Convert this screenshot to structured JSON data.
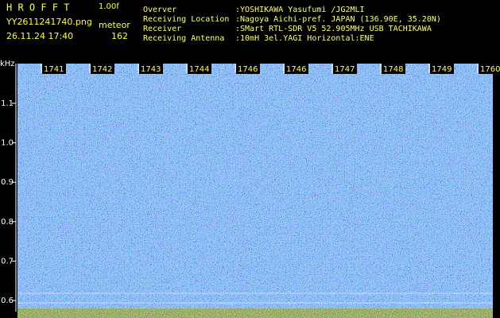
{
  "header": {
    "title": "H R O F F T",
    "version": "1.00f",
    "filename": "YY2611241740.png",
    "mode": "meteor",
    "datetime": "26.11.24 17:40",
    "count": "162"
  },
  "info": [
    {
      "label": "Overver",
      "value": ":YOSHIKAWA Yasufumi /JG2MLI"
    },
    {
      "label": "Receiving Location",
      "value": ":Nagoya Aichi-pref. JAPAN (136.90E, 35.20N)"
    },
    {
      "label": "Receiver",
      "value": ":SMart RTL-SDR V5 52.905MHz USB TACHIKAWA"
    },
    {
      "label": "Receiving Antenna",
      "value": ":10mH 3el.YAGI Horizontal:ENE"
    }
  ],
  "spectrogram": {
    "y_unit": "kHz",
    "yticks": [
      1.1,
      {
        "value": 1.0,
        "label": "1.0"
      },
      0.9,
      0.8,
      0.7,
      0.6
    ],
    "time_labels": [
      "1741",
      "1742",
      "1743",
      "1744",
      "1746",
      "1746",
      "1747",
      "1748",
      "1749",
      "1760"
    ]
  }
}
